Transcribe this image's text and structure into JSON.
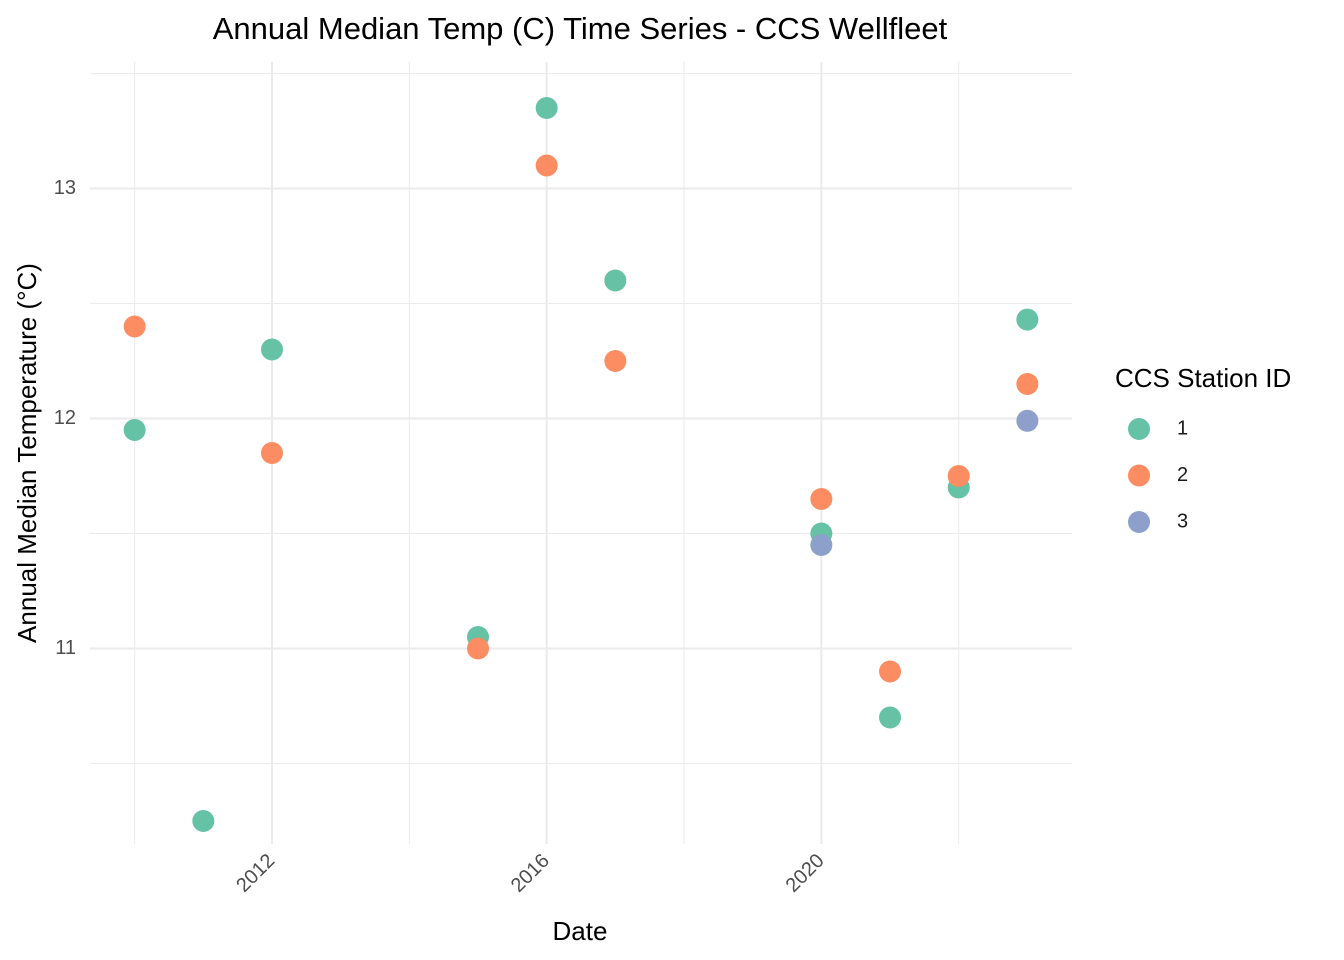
{
  "chart_data": {
    "type": "scatter",
    "title": "Annual Median Temp (C) Time Series - CCS Wellfleet",
    "xlabel": "Date",
    "ylabel": "Annual Median Temperature (°C)",
    "x_ticks": [
      2012,
      2016,
      2020
    ],
    "x_tick_labels": [
      "2012",
      "2016",
      "2020"
    ],
    "y_ticks": [
      11,
      12,
      13
    ],
    "y_tick_labels": [
      "11",
      "12",
      "13"
    ],
    "xlim": [
      2009.35,
      2023.65
    ],
    "ylim": [
      10.15,
      13.55
    ],
    "grid": true,
    "legend": {
      "title": "CCS Station ID",
      "position": "right"
    },
    "series": [
      {
        "name": "1",
        "color": "#66c2a5",
        "points": [
          {
            "x": 2010,
            "y": 11.95
          },
          {
            "x": 2011,
            "y": 10.25
          },
          {
            "x": 2012,
            "y": 12.3
          },
          {
            "x": 2015,
            "y": 11.05
          },
          {
            "x": 2016,
            "y": 13.35
          },
          {
            "x": 2017,
            "y": 12.6
          },
          {
            "x": 2020,
            "y": 11.5
          },
          {
            "x": 2021,
            "y": 10.7
          },
          {
            "x": 2022,
            "y": 11.7
          },
          {
            "x": 2023,
            "y": 12.43
          }
        ]
      },
      {
        "name": "2",
        "color": "#fc8d62",
        "points": [
          {
            "x": 2010,
            "y": 12.4
          },
          {
            "x": 2012,
            "y": 11.85
          },
          {
            "x": 2015,
            "y": 11.0
          },
          {
            "x": 2016,
            "y": 13.1
          },
          {
            "x": 2017,
            "y": 12.25
          },
          {
            "x": 2020,
            "y": 11.65
          },
          {
            "x": 2021,
            "y": 10.9
          },
          {
            "x": 2022,
            "y": 11.75
          },
          {
            "x": 2023,
            "y": 12.15
          }
        ]
      },
      {
        "name": "3",
        "color": "#8da0cb",
        "points": [
          {
            "x": 2020,
            "y": 11.45
          },
          {
            "x": 2023,
            "y": 11.99
          }
        ]
      }
    ]
  }
}
